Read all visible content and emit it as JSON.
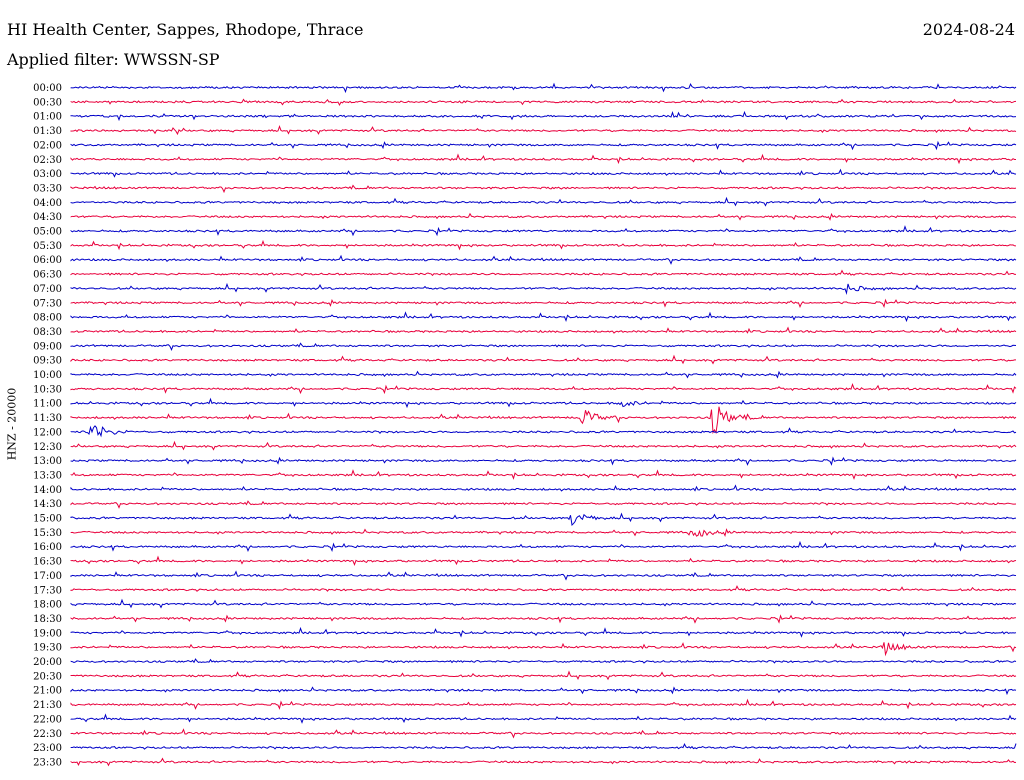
{
  "header": {
    "station": "HI Health Center, Sappes, Rhodope, Thrace",
    "date": "2024-08-24",
    "filter": "Applied filter: WWSSN-SP"
  },
  "chart_data": {
    "type": "line",
    "title": "HI Health Center, Sappes, Rhodope, Thrace",
    "ylabel": "HNZ - 20000",
    "xlabel": "",
    "colors": {
      "even_rows": "#0000c8",
      "odd_rows": "#e8003c"
    },
    "row_labels": [
      "00:00",
      "00:30",
      "01:00",
      "01:30",
      "02:00",
      "02:30",
      "03:00",
      "03:30",
      "04:00",
      "04:30",
      "05:00",
      "05:30",
      "06:00",
      "06:30",
      "07:00",
      "07:30",
      "08:00",
      "08:30",
      "09:00",
      "09:30",
      "10:00",
      "10:30",
      "11:00",
      "11:30",
      "12:00",
      "12:30",
      "13:00",
      "13:30",
      "14:00",
      "14:30",
      "15:00",
      "15:30",
      "16:00",
      "16:30",
      "17:00",
      "17:30",
      "18:00",
      "18:30",
      "19:00",
      "19:30",
      "20:00",
      "20:30",
      "21:00",
      "21:30",
      "22:00",
      "22:30",
      "23:00",
      "23:30"
    ],
    "events": [
      {
        "row": "11:00",
        "position": 0.58,
        "amplitude": 0.4
      },
      {
        "row": "11:30",
        "position": 0.54,
        "amplitude": 0.9
      },
      {
        "row": "11:30",
        "position": 0.68,
        "amplitude": 1.6
      },
      {
        "row": "12:00",
        "position": 0.02,
        "amplitude": 1.2
      },
      {
        "row": "15:00",
        "position": 0.53,
        "amplitude": 0.7
      },
      {
        "row": "15:30",
        "position": 0.66,
        "amplitude": 0.5
      },
      {
        "row": "19:30",
        "position": 0.86,
        "amplitude": 0.7
      },
      {
        "row": "07:00",
        "position": 0.82,
        "amplitude": 0.4
      }
    ]
  }
}
